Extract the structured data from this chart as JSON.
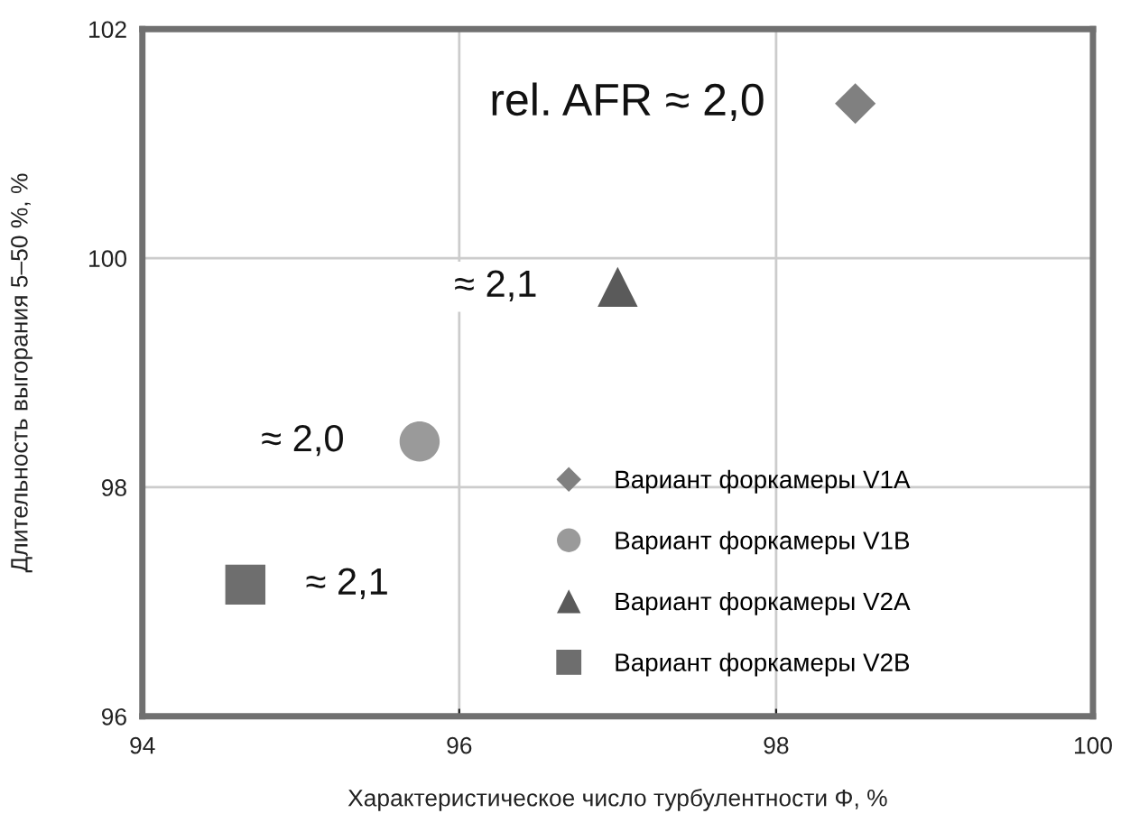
{
  "chart_data": {
    "type": "scatter",
    "xlabel": "Характеристическое число турбулентности Φ, %",
    "ylabel": "Длительность выгорания 5–50 %, %",
    "xlim": [
      94,
      100
    ],
    "ylim": [
      96,
      102
    ],
    "xticks": [
      94,
      96,
      98,
      100
    ],
    "yticks": [
      96,
      98,
      100,
      102
    ],
    "grid": true,
    "legend": "bottom right",
    "series": [
      {
        "name": "Вариант форкамеры V1A",
        "color": "#808080",
        "marker": "diamond",
        "x": [
          98.5
        ],
        "values": [
          101.35
        ]
      },
      {
        "name": "Вариант форкамеры V1B",
        "color": "#9a9a9a",
        "marker": "circle",
        "x": [
          95.75
        ],
        "values": [
          98.4
        ]
      },
      {
        "name": "Вариант форкамеры V2A",
        "color": "#5a5a5a",
        "marker": "triangle",
        "x": [
          97.0
        ],
        "values": [
          99.75
        ]
      },
      {
        "name": "Вариант форкамеры V2B",
        "color": "#6e6e6e",
        "marker": "square",
        "x": [
          94.65
        ],
        "values": [
          97.15
        ]
      }
    ],
    "annotations": [
      {
        "text": "rel. AFR ≈ 2,0",
        "x": 98.5,
        "y": 101.35
      },
      {
        "text": "≈ 2,1",
        "x": 97.0,
        "y": 99.75
      },
      {
        "text": "≈ 2,0",
        "x": 95.75,
        "y": 98.4
      },
      {
        "text": "≈ 2,1",
        "x": 94.65,
        "y": 97.15
      }
    ]
  }
}
